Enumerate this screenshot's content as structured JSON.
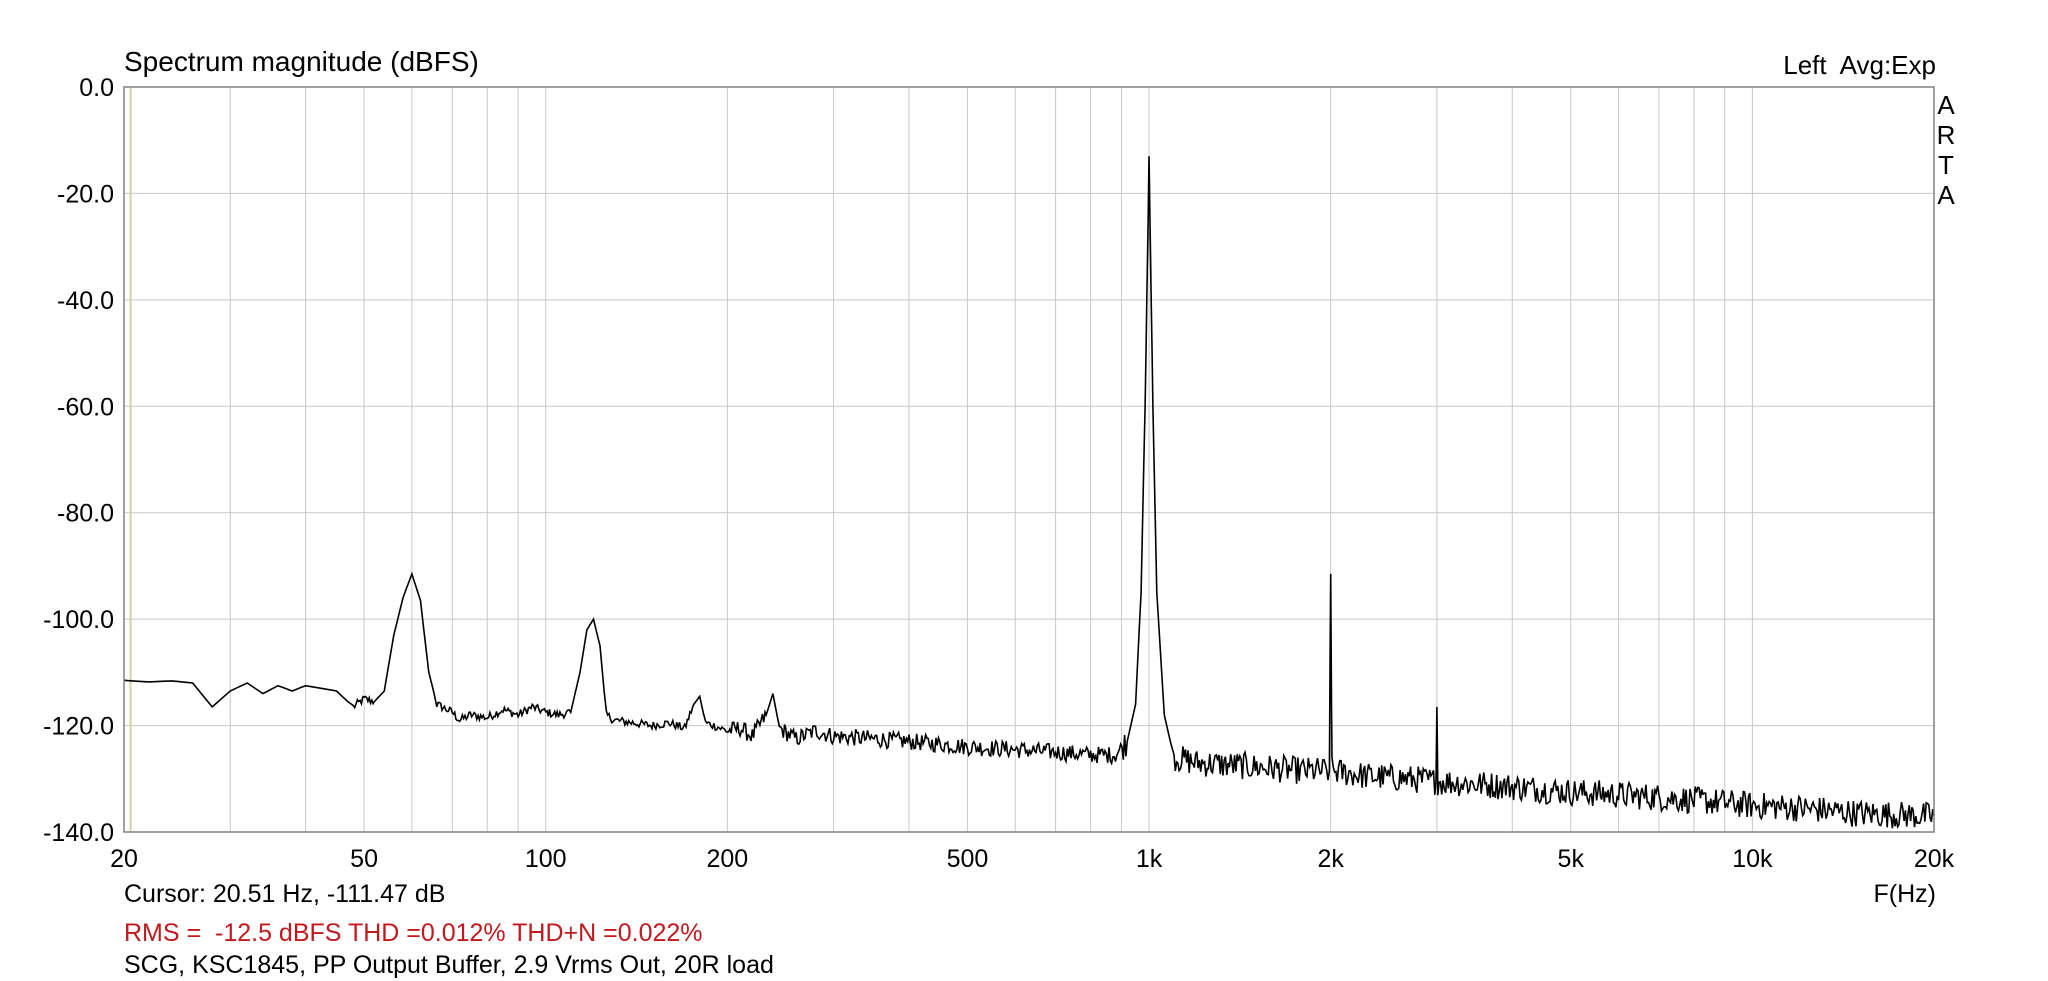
{
  "header": {
    "channel_info": "Left  Avg:Exp",
    "vertical_label": [
      "A",
      "R",
      "T",
      "A"
    ]
  },
  "footer": {
    "cursor": "Cursor: 20.51 Hz, -111.47 dB",
    "stats": "RMS =  -12.5 dBFS THD =0.012% THD+N =0.022%",
    "description": "SCG, KSC1845, PP Output Buffer, 2.9 Vrms Out, 20R load"
  },
  "colors": {
    "trace": "#000000",
    "grid": "#c8c8c8",
    "frame": "#808080",
    "stats": "#c0191e",
    "cursor_line": "#d9d2a0"
  },
  "chart_data": {
    "type": "line",
    "title": "Spectrum magnitude (dBFS)",
    "xlabel": "F(Hz)",
    "ylabel": "",
    "xscale": "log",
    "xlim": [
      20,
      20000
    ],
    "ylim": [
      -140,
      0
    ],
    "grid": true,
    "xticks": [
      20,
      50,
      100,
      200,
      500,
      1000,
      2000,
      5000,
      10000,
      20000
    ],
    "xtick_labels": [
      "20",
      "50",
      "100",
      "200",
      "500",
      "1k",
      "2k",
      "5k",
      "10k",
      "20k"
    ],
    "yticks": [
      0,
      -20,
      -40,
      -60,
      -80,
      -100,
      -120,
      -140
    ],
    "ytick_labels": [
      "0.0",
      "-20.0",
      "-40.0",
      "-60.0",
      "-80.0",
      "-100.0",
      "-120.0",
      "-140.0"
    ],
    "cursor_x": 20.51,
    "series": [
      {
        "points": [
          [
            20,
            -111.5
          ],
          [
            22,
            -111.8
          ],
          [
            24,
            -111.6
          ],
          [
            26,
            -112.0
          ],
          [
            28,
            -116.5
          ],
          [
            30,
            -113.5
          ],
          [
            32,
            -112.0
          ],
          [
            34,
            -114.0
          ],
          [
            36,
            -112.5
          ],
          [
            38,
            -113.5
          ],
          [
            40,
            -112.5
          ],
          [
            45,
            -113.5
          ],
          [
            48,
            -116.5
          ],
          [
            50,
            -115.0
          ],
          [
            52,
            -115.5
          ],
          [
            54,
            -113.5
          ],
          [
            56,
            -103.0
          ],
          [
            58,
            -96.0
          ],
          [
            60,
            -91.5
          ],
          [
            62,
            -96.5
          ],
          [
            64,
            -110.0
          ],
          [
            66,
            -116.0
          ],
          [
            70,
            -117.5
          ],
          [
            72,
            -119.0
          ],
          [
            75,
            -118.0
          ],
          [
            80,
            -118.5
          ],
          [
            85,
            -117.0
          ],
          [
            90,
            -118.0
          ],
          [
            95,
            -116.5
          ],
          [
            100,
            -117.5
          ],
          [
            105,
            -118.0
          ],
          [
            110,
            -117.5
          ],
          [
            114,
            -110.0
          ],
          [
            117,
            -102.0
          ],
          [
            120,
            -100.0
          ],
          [
            123,
            -105.0
          ],
          [
            126,
            -118.0
          ],
          [
            130,
            -119.0
          ],
          [
            140,
            -119.5
          ],
          [
            150,
            -120.0
          ],
          [
            160,
            -119.5
          ],
          [
            170,
            -120.5
          ],
          [
            176,
            -116.0
          ],
          [
            180,
            -114.5
          ],
          [
            184,
            -119.5
          ],
          [
            190,
            -120.0
          ],
          [
            200,
            -121.0
          ],
          [
            210,
            -120.5
          ],
          [
            220,
            -122.0
          ],
          [
            232,
            -118.0
          ],
          [
            238,
            -114.0
          ],
          [
            244,
            -120.5
          ],
          [
            260,
            -122.5
          ],
          [
            280,
            -121.0
          ],
          [
            300,
            -122.0
          ],
          [
            350,
            -122.5
          ],
          [
            400,
            -123.0
          ],
          [
            450,
            -123.5
          ],
          [
            500,
            -124.0
          ],
          [
            600,
            -124.5
          ],
          [
            700,
            -125.0
          ],
          [
            800,
            -125.5
          ],
          [
            880,
            -125.5
          ],
          [
            920,
            -123.0
          ],
          [
            950,
            -116.0
          ],
          [
            970,
            -95.0
          ],
          [
            985,
            -60.0
          ],
          [
            995,
            -30.0
          ],
          [
            1000,
            -13.0
          ],
          [
            1005,
            -30.0
          ],
          [
            1015,
            -60.0
          ],
          [
            1030,
            -95.0
          ],
          [
            1060,
            -118.0
          ],
          [
            1100,
            -126.0
          ],
          [
            1200,
            -127.0
          ],
          [
            1400,
            -127.5
          ],
          [
            1600,
            -128.0
          ],
          [
            1800,
            -128.5
          ],
          [
            1990,
            -128.5
          ],
          [
            2000,
            -91.5
          ],
          [
            2010,
            -128.5
          ],
          [
            2300,
            -129.5
          ],
          [
            2700,
            -130.0
          ],
          [
            2990,
            -130.5
          ],
          [
            3000,
            -116.5
          ],
          [
            3010,
            -130.5
          ],
          [
            3500,
            -131.0
          ],
          [
            4000,
            -131.5
          ],
          [
            5000,
            -132.5
          ],
          [
            6000,
            -133.0
          ],
          [
            7000,
            -133.5
          ],
          [
            8000,
            -134.0
          ],
          [
            10000,
            -135.0
          ],
          [
            12000,
            -135.5
          ],
          [
            15000,
            -136.5
          ],
          [
            20000,
            -137.0
          ]
        ]
      }
    ]
  }
}
